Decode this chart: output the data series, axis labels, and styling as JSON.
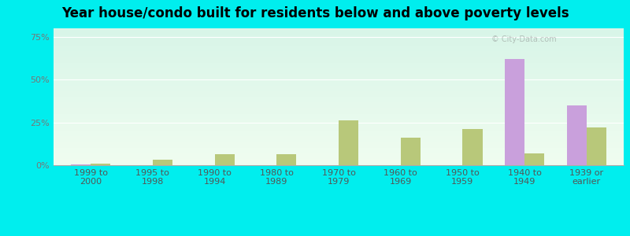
{
  "title": "Year house/condo built for residents below and above poverty levels",
  "categories": [
    "1999 to\n2000",
    "1995 to\n1998",
    "1990 to\n1994",
    "1980 to\n1989",
    "1970 to\n1979",
    "1960 to\n1969",
    "1950 to\n1959",
    "1940 to\n1949",
    "1939 or\nearlier"
  ],
  "below_poverty": [
    0.5,
    0.0,
    0.0,
    0.0,
    0.0,
    0.0,
    0.0,
    62.0,
    35.0
  ],
  "above_poverty": [
    1.0,
    3.0,
    6.5,
    6.5,
    26.0,
    16.0,
    21.0,
    7.0,
    22.0
  ],
  "below_color": "#c9a0dc",
  "above_color": "#b8c87a",
  "bg_top_color": "#d8f5e8",
  "bg_bottom_color": "#f0fdf0",
  "outer_background": "#00eeee",
  "grid_color": "#cccccc",
  "ytick_color": "#777777",
  "xtick_color": "#555555",
  "ylim": [
    0,
    80
  ],
  "yticks": [
    0,
    25,
    50,
    75
  ],
  "ytick_labels": [
    "0%",
    "25%",
    "50%",
    "75%"
  ],
  "title_fontsize": 12,
  "tick_fontsize": 8,
  "bar_width": 0.32
}
